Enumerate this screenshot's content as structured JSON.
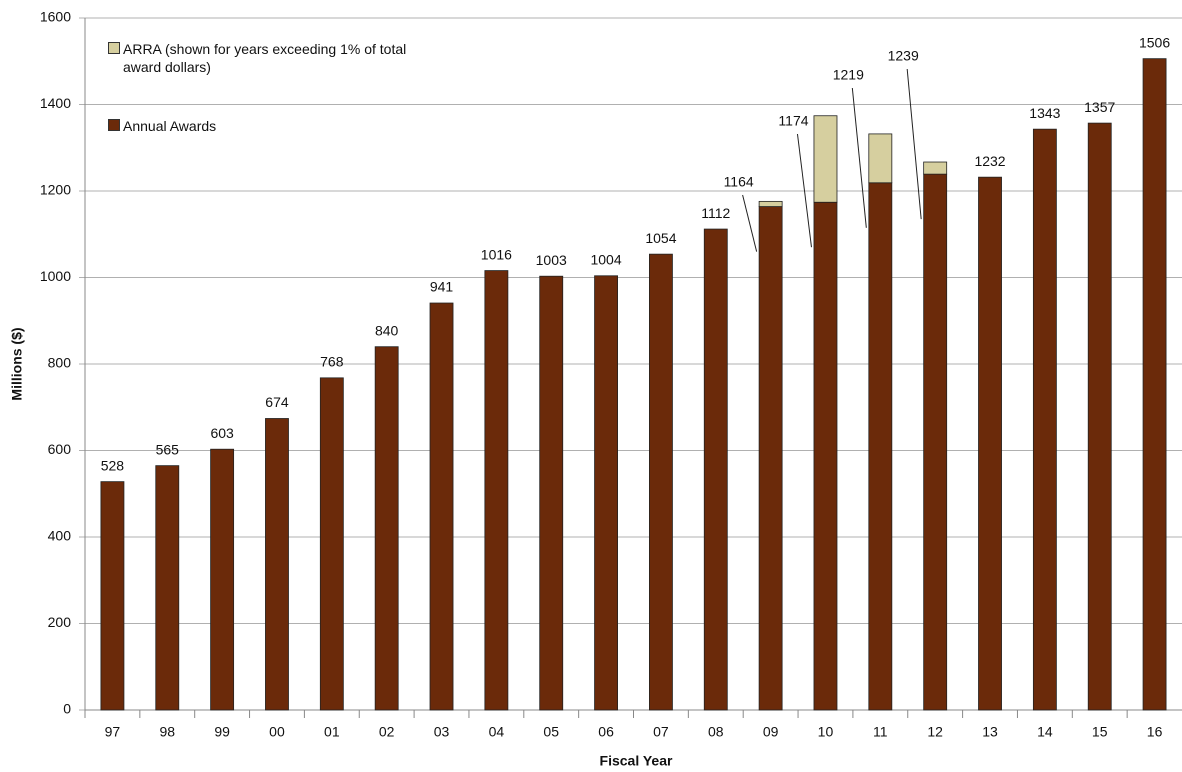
{
  "chart_data": {
    "type": "stacked_bar",
    "x_label": "Fiscal Year",
    "y_label": "Millions ($)",
    "categories": [
      "97",
      "98",
      "99",
      "00",
      "01",
      "02",
      "03",
      "04",
      "05",
      "06",
      "07",
      "08",
      "09",
      "10",
      "11",
      "12",
      "13",
      "14",
      "15",
      "16"
    ],
    "series": [
      {
        "name": "Annual Awards",
        "color": "#6b2a0a",
        "values": [
          528,
          565,
          603,
          674,
          768,
          840,
          941,
          1016,
          1003,
          1004,
          1054,
          1112,
          1164,
          1174,
          1219,
          1239,
          1232,
          1343,
          1357,
          1506
        ]
      },
      {
        "name": "ARRA (shown for years exceeding 1% of total award dollars)",
        "color": "#d6cf9f",
        "values": [
          null,
          null,
          null,
          null,
          null,
          null,
          null,
          null,
          null,
          null,
          null,
          null,
          12,
          200,
          113,
          28,
          null,
          null,
          null,
          null
        ]
      }
    ],
    "ylim": [
      0,
      1600
    ],
    "yticks": [
      0,
      200,
      400,
      600,
      800,
      1000,
      1200,
      1400,
      1600
    ],
    "grid": true
  }
}
